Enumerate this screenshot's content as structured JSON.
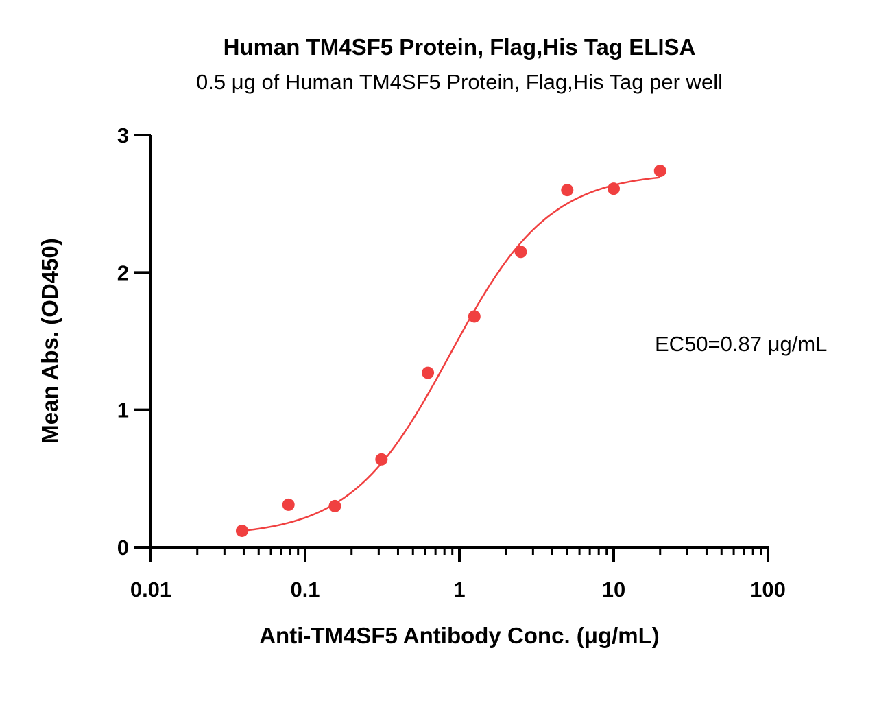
{
  "chart_data": {
    "type": "scatter",
    "title": "Human TM4SF5 Protein, Flag,His Tag ELISA",
    "subtitle": "0.5 μg of Human TM4SF5 Protein, Flag,His Tag per well",
    "xlabel": "Anti-TM4SF5 Antibody Conc. (μg/mL)",
    "ylabel": "Mean Abs. (OD450)",
    "xscale": "log",
    "xlim": [
      0.01,
      100
    ],
    "ylim": [
      0,
      3
    ],
    "x_ticks": [
      "0.01",
      "0.1",
      "1",
      "10",
      "100"
    ],
    "y_ticks": [
      "0",
      "1",
      "2",
      "3"
    ],
    "grid": false,
    "annotation": "EC50=0.87 μg/mL",
    "series": [
      {
        "color": "#f04040",
        "points": [
          {
            "x": 0.039,
            "y": 0.12
          },
          {
            "x": 0.078,
            "y": 0.31
          },
          {
            "x": 0.156,
            "y": 0.3
          },
          {
            "x": 0.3125,
            "y": 0.64
          },
          {
            "x": 0.625,
            "y": 1.27
          },
          {
            "x": 1.25,
            "y": 1.68
          },
          {
            "x": 2.5,
            "y": 2.15
          },
          {
            "x": 5,
            "y": 2.6
          },
          {
            "x": 10,
            "y": 2.61
          },
          {
            "x": 20,
            "y": 2.74
          }
        ],
        "fit": {
          "bottom": 0.08,
          "top": 2.73,
          "ec50": 0.87,
          "hill": 1.35
        }
      }
    ]
  }
}
